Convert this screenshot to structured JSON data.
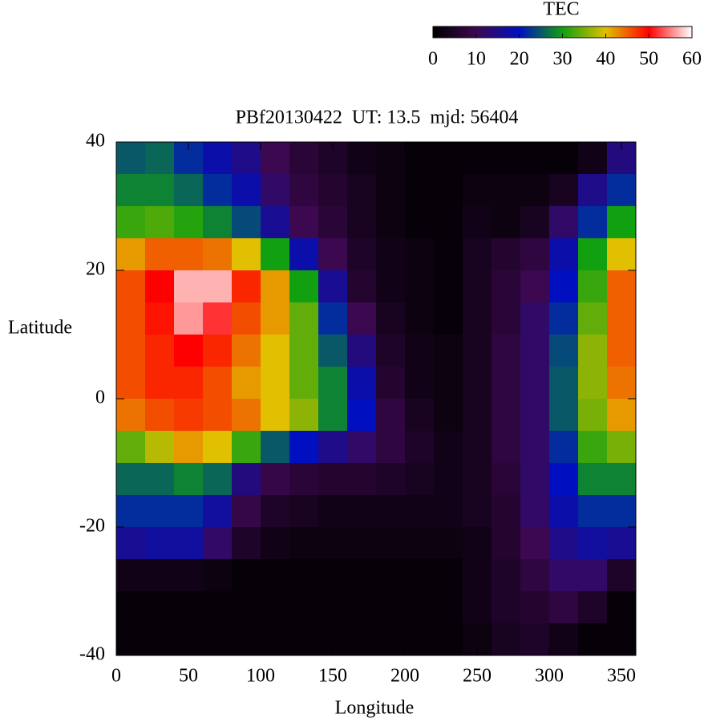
{
  "chart_data": {
    "type": "heatmap",
    "title": "PBf20130422  UT: 13.5  mjd: 56404",
    "x_label": "Longitude",
    "y_label": "Latitude",
    "colorbar_label": "TEC",
    "xlim": [
      0,
      360
    ],
    "ylim": [
      -40,
      40
    ],
    "xticks": [
      0,
      50,
      100,
      150,
      200,
      250,
      300,
      350
    ],
    "yticks": [
      -40,
      -20,
      0,
      20,
      40
    ],
    "clim": [
      0,
      60
    ],
    "cticks": [
      0,
      10,
      20,
      30,
      40,
      50,
      60
    ],
    "colors": [
      "#000000",
      "#3c0850",
      "#0010c0",
      "#10a010",
      "#e0c000",
      "#ff0000",
      "#ffffff"
    ],
    "x": [
      0,
      20,
      40,
      60,
      80,
      100,
      120,
      140,
      160,
      180,
      200,
      220,
      240,
      260,
      280,
      300,
      320,
      340
    ],
    "y": [
      40,
      35,
      30,
      25,
      20,
      15,
      10,
      5,
      0,
      -5,
      -10,
      -15,
      -20,
      -25,
      -30,
      -35
    ],
    "values": [
      [
        25,
        26,
        22,
        18,
        15,
        10,
        7,
        5,
        3,
        2,
        1,
        1,
        1,
        1,
        1,
        1,
        3,
        14
      ],
      [
        28,
        28,
        26,
        22,
        18,
        12,
        8,
        6,
        4,
        2,
        1,
        1,
        2,
        2,
        2,
        4,
        15,
        22
      ],
      [
        32,
        33,
        31,
        28,
        24,
        16,
        10,
        7,
        4,
        2,
        1,
        1,
        3,
        2,
        4,
        12,
        22,
        30
      ],
      [
        42,
        45,
        45,
        44,
        40,
        30,
        18,
        10,
        5,
        3,
        2,
        1,
        4,
        6,
        8,
        18,
        30,
        40
      ],
      [
        46,
        50,
        57,
        57,
        48,
        42,
        30,
        16,
        6,
        3,
        2,
        1,
        4,
        7,
        10,
        20,
        32,
        45
      ],
      [
        46,
        49,
        56,
        52,
        46,
        42,
        34,
        22,
        10,
        4,
        2,
        1,
        4,
        7,
        12,
        22,
        34,
        45
      ],
      [
        46,
        48,
        50,
        48,
        44,
        40,
        34,
        25,
        14,
        5,
        3,
        2,
        4,
        8,
        12,
        24,
        36,
        45
      ],
      [
        46,
        48,
        48,
        46,
        42,
        40,
        34,
        28,
        18,
        6,
        3,
        2,
        4,
        8,
        12,
        25,
        36,
        44
      ],
      [
        44,
        46,
        47,
        46,
        44,
        40,
        36,
        28,
        20,
        8,
        4,
        2,
        4,
        8,
        12,
        25,
        35,
        42
      ],
      [
        34,
        38,
        42,
        40,
        32,
        25,
        20,
        15,
        12,
        8,
        5,
        3,
        4,
        8,
        12,
        22,
        32,
        35
      ],
      [
        26,
        26,
        28,
        26,
        14,
        9,
        7,
        6,
        6,
        5,
        4,
        3,
        4,
        7,
        12,
        20,
        28,
        28
      ],
      [
        22,
        22,
        22,
        17,
        9,
        5,
        4,
        3,
        3,
        3,
        3,
        3,
        4,
        6,
        12,
        18,
        22,
        22
      ],
      [
        16,
        17,
        17,
        12,
        5,
        3,
        2,
        2,
        2,
        2,
        2,
        2,
        3,
        6,
        10,
        15,
        17,
        16
      ],
      [
        3,
        3,
        3,
        2,
        1,
        1,
        1,
        1,
        1,
        1,
        1,
        1,
        3,
        5,
        8,
        12,
        12,
        5
      ],
      [
        1,
        1,
        1,
        1,
        1,
        1,
        1,
        1,
        1,
        1,
        1,
        1,
        3,
        5,
        6,
        8,
        5,
        1
      ],
      [
        1,
        1,
        1,
        1,
        1,
        1,
        1,
        1,
        1,
        1,
        1,
        1,
        2,
        4,
        5,
        3,
        1,
        1
      ]
    ]
  }
}
